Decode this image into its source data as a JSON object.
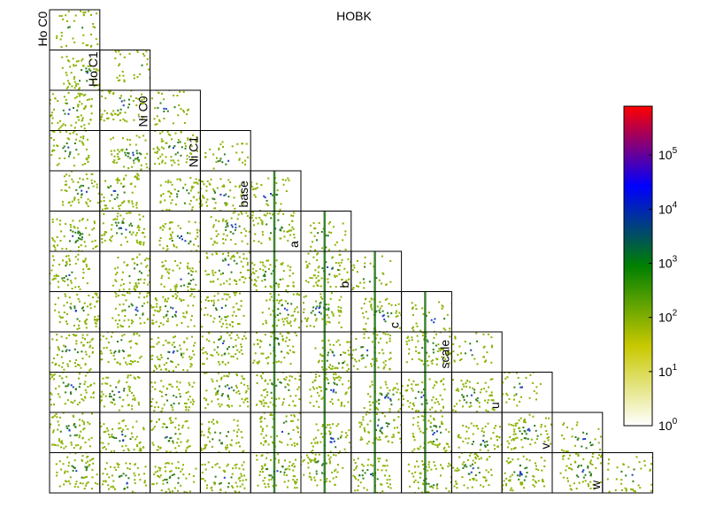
{
  "chart_data": {
    "type": "heatmap",
    "subtype": "corner-plot (pairwise 2D histograms, lower triangle)",
    "title": "HOBK",
    "parameters": [
      "Ho C0",
      "Ho C1",
      "Ni C0",
      "Ni C1",
      "base",
      "a",
      "b",
      "c",
      "scale",
      "u",
      "v",
      "w"
    ],
    "colorbar": {
      "scale": "log",
      "range": [
        1,
        800000
      ],
      "ticks": [
        {
          "value": 1,
          "base": "10",
          "exp": "0"
        },
        {
          "value": 10,
          "base": "10",
          "exp": "1"
        },
        {
          "value": 100,
          "base": "10",
          "exp": "2"
        },
        {
          "value": 1000,
          "base": "10",
          "exp": "3"
        },
        {
          "value": 10000,
          "base": "10",
          "exp": "4"
        },
        {
          "value": 100000,
          "base": "10",
          "exp": "5"
        }
      ],
      "colormap": [
        "#ffffff",
        "#c8c800",
        "#008000",
        "#0000ff",
        "#ff0000"
      ]
    },
    "grid": false,
    "legend": "colorbar-right"
  }
}
